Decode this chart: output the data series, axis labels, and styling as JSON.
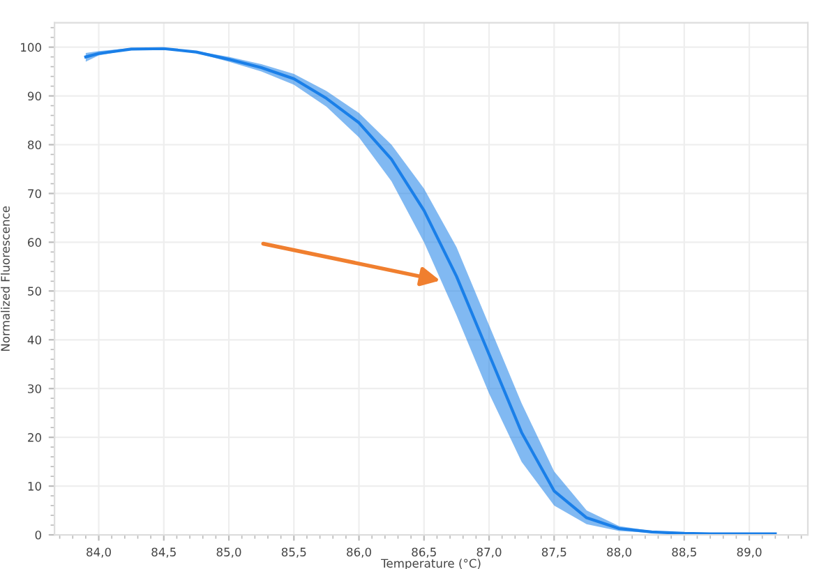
{
  "chart_data": {
    "type": "line",
    "xlabel": "Temperature (°C)",
    "ylabel": "Normalized Fluorescence",
    "x": [
      83.9,
      84.0,
      84.25,
      84.5,
      84.75,
      85.0,
      85.25,
      85.5,
      85.75,
      86.0,
      86.25,
      86.5,
      86.75,
      87.0,
      87.25,
      87.5,
      87.75,
      88.0,
      88.25,
      88.5,
      88.75,
      89.0,
      89.2
    ],
    "series": [
      {
        "color": "#1a7fe8",
        "values": [
          98,
          98.7,
          99.6,
          99.7,
          99,
          97.5,
          95.8,
          93.5,
          89.5,
          84.5,
          77,
          66.5,
          53,
          37,
          21,
          9,
          3.5,
          1.3,
          0.6,
          0.3,
          0.2,
          0.2,
          0.2
        ],
        "lower": [
          97,
          98.3,
          99.5,
          99.6,
          98.8,
          97,
          95,
          92.3,
          87.8,
          81.5,
          72.5,
          60,
          45,
          29,
          15,
          6,
          2.2,
          0.8,
          0.4,
          0.2,
          0.2,
          0.2,
          0.2
        ],
        "upper": [
          98.8,
          99.2,
          99.8,
          99.8,
          99.2,
          98,
          96.5,
          94.5,
          91,
          86.5,
          80,
          71,
          59,
          43,
          27,
          13,
          5,
          1.8,
          0.8,
          0.4,
          0.3,
          0.2,
          0.2
        ]
      }
    ],
    "xlim": [
      83.66,
      89.45
    ],
    "ylim": [
      0,
      105
    ],
    "xticks": [
      {
        "value": 84.0,
        "label": "84,0"
      },
      {
        "value": 84.5,
        "label": "84,5"
      },
      {
        "value": 85.0,
        "label": "85,0"
      },
      {
        "value": 85.5,
        "label": "85,5"
      },
      {
        "value": 86.0,
        "label": "86,0"
      },
      {
        "value": 86.5,
        "label": "86,5"
      },
      {
        "value": 87.0,
        "label": "87,0"
      },
      {
        "value": 87.5,
        "label": "87,5"
      },
      {
        "value": 88.0,
        "label": "88,0"
      },
      {
        "value": 88.5,
        "label": "88,5"
      },
      {
        "value": 89.0,
        "label": "89,0"
      }
    ],
    "yticks": [
      0,
      10,
      20,
      30,
      40,
      50,
      60,
      70,
      80,
      90,
      100
    ],
    "grid": true,
    "marker": "none",
    "line_style": "solid"
  }
}
